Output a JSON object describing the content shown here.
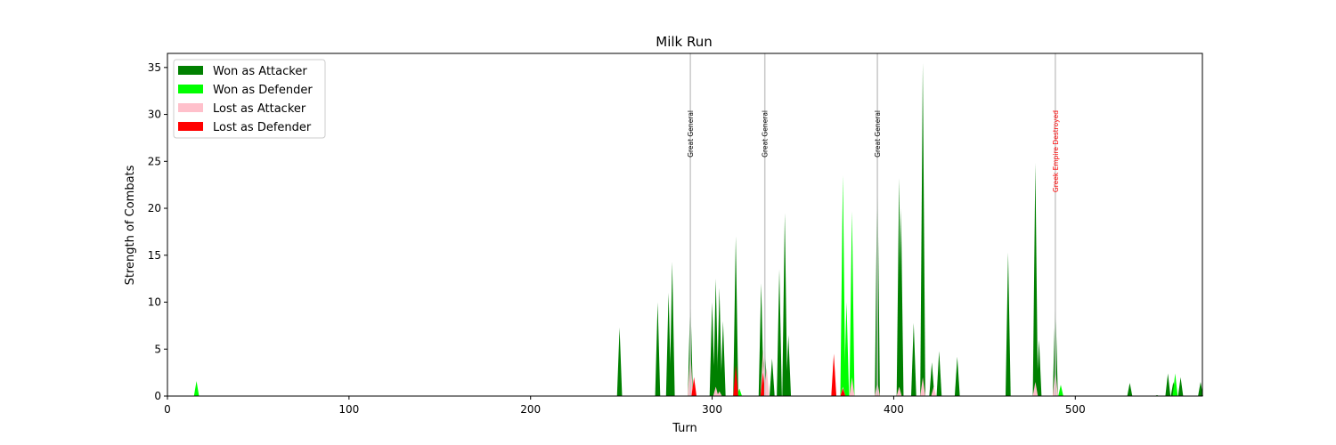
{
  "chart_data": {
    "type": "area",
    "title": "Milk Run",
    "xlabel": "Turn",
    "ylabel": "Strength of Combats",
    "xlim": [
      0,
      570
    ],
    "ylim": [
      0,
      36.5
    ],
    "xticks": [
      0,
      100,
      200,
      300,
      400,
      500
    ],
    "yticks": [
      0,
      5,
      10,
      15,
      20,
      25,
      30,
      35
    ],
    "legend_position": "top-left",
    "series": [
      {
        "name": "Won as Attacker",
        "color": "#008000",
        "points": [
          [
            249,
            7.3
          ],
          [
            270,
            10
          ],
          [
            276,
            11
          ],
          [
            278,
            14.3
          ],
          [
            288,
            10.8
          ],
          [
            300,
            10
          ],
          [
            302,
            12.5
          ],
          [
            304,
            11.5
          ],
          [
            306,
            8
          ],
          [
            313,
            17
          ],
          [
            327,
            12
          ],
          [
            329,
            5.5
          ],
          [
            333,
            4
          ],
          [
            337,
            13.5
          ],
          [
            340,
            19.5
          ],
          [
            342,
            6.5
          ],
          [
            391,
            25
          ],
          [
            403,
            23.2
          ],
          [
            404,
            20
          ],
          [
            411,
            7.8
          ],
          [
            416,
            35.5
          ],
          [
            421,
            3.6
          ],
          [
            425,
            4.8
          ],
          [
            435,
            4.2
          ],
          [
            463,
            15.3
          ],
          [
            478,
            24.8
          ],
          [
            480,
            6
          ],
          [
            489,
            10.5
          ],
          [
            530,
            1.4
          ],
          [
            545,
            0.1
          ],
          [
            551,
            2.4
          ],
          [
            554,
            1.5
          ],
          [
            558,
            2
          ],
          [
            569,
            1.5
          ]
        ]
      },
      {
        "name": "Won as Defender",
        "color": "#00ff00",
        "points": [
          [
            16,
            1.6
          ],
          [
            315,
            0.8
          ],
          [
            372,
            23.5
          ],
          [
            374,
            10
          ],
          [
            377,
            19.7
          ],
          [
            489,
            1.5
          ],
          [
            492,
            1.2
          ],
          [
            555,
            2.4
          ]
        ]
      },
      {
        "name": "Lost as Attacker",
        "color": "#ffc0cb",
        "points": [
          [
            288,
            5
          ],
          [
            302,
            1
          ],
          [
            304,
            0.5
          ],
          [
            328,
            5
          ],
          [
            330,
            3
          ],
          [
            372,
            1
          ],
          [
            377,
            2
          ],
          [
            391,
            1.5
          ],
          [
            403,
            1
          ],
          [
            416,
            2
          ],
          [
            422,
            1
          ],
          [
            478,
            1.5
          ],
          [
            489,
            3
          ]
        ]
      },
      {
        "name": "Lost as Defender",
        "color": "#ff0000",
        "points": [
          [
            290,
            2
          ],
          [
            313,
            3.3
          ],
          [
            328,
            2.5
          ],
          [
            367,
            4.5
          ],
          [
            372,
            0.8
          ]
        ]
      }
    ],
    "annotations": [
      {
        "x": 288,
        "label": "Great General",
        "color": "#000000"
      },
      {
        "x": 329,
        "label": "Great General",
        "color": "#000000"
      },
      {
        "x": 391,
        "label": "Great General",
        "color": "#000000"
      },
      {
        "x": 489,
        "label": "Greek Empire Destroyed",
        "color": "#ff0000"
      }
    ]
  }
}
